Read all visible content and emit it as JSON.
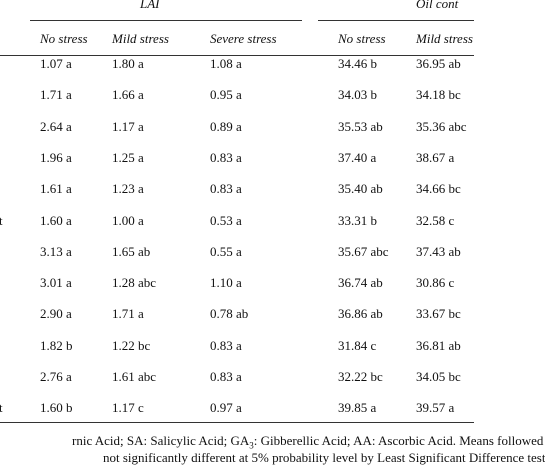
{
  "table": {
    "groups": [
      "LAI",
      "Oil cont"
    ],
    "columns": [
      "No stress",
      "Mild stress",
      "Severe stress",
      "No stress",
      "Mild stress"
    ],
    "rows": [
      {
        "cells": [
          "1.07 a",
          "1.80 a",
          "1.08 a",
          "34.46 b",
          "36.95 ab"
        ]
      },
      {
        "cells": [
          "1.71 a",
          "1.66 a",
          "0.95 a",
          "34.03 b",
          "34.18 bc"
        ]
      },
      {
        "cells": [
          "2.64 a",
          "1.17 a",
          "0.89 a",
          "35.53 ab",
          "35.36 abc"
        ]
      },
      {
        "cells": [
          "1.96 a",
          "1.25 a",
          "0.83 a",
          "37.40 a",
          "38.67 a"
        ]
      },
      {
        "cells": [
          "1.61 a",
          "1.23 a",
          "0.83 a",
          "35.40 ab",
          "34.66 bc"
        ]
      },
      {
        "label": "t",
        "cells": [
          "1.60 a",
          "1.00 a",
          "0.53 a",
          "33.31 b",
          "32.58 c"
        ]
      },
      {
        "cells": [
          "3.13 a",
          "1.65 ab",
          "0.55 a",
          "35.67 abc",
          "37.43 ab"
        ]
      },
      {
        "cells": [
          "3.01 a",
          "1.28 abc",
          "1.10 a",
          "36.74 ab",
          "30.86 c"
        ]
      },
      {
        "cells": [
          "2.90 a",
          "1.71 a",
          "0.78 ab",
          "36.86 ab",
          "33.67 bc"
        ]
      },
      {
        "cells": [
          "1.82 b",
          "1.22 bc",
          "0.83 a",
          "31.84 c",
          "36.81 ab"
        ]
      },
      {
        "cells": [
          "2.76 a",
          "1.61 abc",
          "0.83 a",
          "32.22 bc",
          "34.05 bc"
        ]
      },
      {
        "label": "t",
        "cells": [
          "1.60 b",
          "1.17 c",
          "0.97 a",
          "39.85 a",
          "39.57 a"
        ]
      }
    ]
  },
  "footnote": {
    "line1": [
      "rnic Acid; SA: Salicylic Acid; GA",
      "3",
      ": Gibberellic Acid; AA: Ascorbic Acid. Means followed"
    ],
    "line2": "not significantly different at 5% probability level by Least Significant Difference test"
  }
}
